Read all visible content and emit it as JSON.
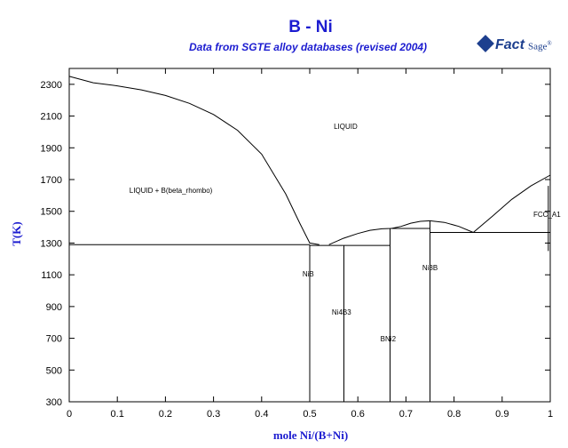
{
  "title": "B - Ni",
  "subtitle": "Data from SGTE alloy databases (revised 2004)",
  "logo": {
    "fact": "Fact",
    "sage": "Sage",
    "trademark": "®"
  },
  "colors": {
    "label_blue": "#1c1cd0",
    "logo_blue": "#1d3f8e"
  },
  "chart_data": {
    "type": "phase-diagram",
    "xlabel": "mole Ni/(B+Ni)",
    "ylabel": "T(K)",
    "xlim": [
      0,
      1
    ],
    "ylim": [
      300,
      2400
    ],
    "xticks": [
      0,
      0.1,
      0.2,
      0.3,
      0.4,
      0.5,
      0.6,
      0.7,
      0.8,
      0.9,
      1
    ],
    "xtick_labels": [
      "0",
      "0.1",
      "0.2",
      "0.3",
      "0.4",
      "0.5",
      "0.6",
      "0.7",
      "0.8",
      "0.9",
      "1"
    ],
    "yticks": [
      300,
      500,
      700,
      900,
      1100,
      1300,
      1500,
      1700,
      1900,
      2100,
      2300
    ],
    "lines": [
      {
        "name": "liquidus-boron-side",
        "points": [
          [
            0,
            2350
          ],
          [
            0.05,
            2310
          ],
          [
            0.1,
            2290
          ],
          [
            0.15,
            2265
          ],
          [
            0.2,
            2230
          ],
          [
            0.25,
            2180
          ],
          [
            0.3,
            2110
          ],
          [
            0.35,
            2010
          ],
          [
            0.4,
            1860
          ],
          [
            0.45,
            1610
          ],
          [
            0.48,
            1420
          ],
          [
            0.5,
            1300
          ],
          [
            0.52,
            1290
          ]
        ]
      },
      {
        "name": "liquidus-ni2b-ni3b-dome",
        "points": [
          [
            0.54,
            1290
          ],
          [
            0.57,
            1330
          ],
          [
            0.6,
            1360
          ],
          [
            0.625,
            1380
          ],
          [
            0.65,
            1390
          ],
          [
            0.67,
            1392
          ],
          [
            0.69,
            1405
          ],
          [
            0.71,
            1425
          ],
          [
            0.73,
            1437
          ],
          [
            0.75,
            1440
          ],
          [
            0.78,
            1430
          ],
          [
            0.81,
            1405
          ],
          [
            0.84,
            1367
          ]
        ]
      },
      {
        "name": "liquidus-ni-side",
        "points": [
          [
            0.84,
            1367
          ],
          [
            0.88,
            1470
          ],
          [
            0.92,
            1575
          ],
          [
            0.96,
            1660
          ],
          [
            1,
            1728
          ]
        ]
      },
      {
        "name": "eutectic-b-nib",
        "points": [
          [
            0,
            1290
          ],
          [
            0.5,
            1290
          ]
        ]
      },
      {
        "name": "peritectic-nib-ni4b3",
        "points": [
          [
            0.5,
            1285
          ],
          [
            0.57,
            1285
          ]
        ]
      },
      {
        "name": "eutectic-ni4b3-ni2b",
        "points": [
          [
            0.57,
            1285
          ],
          [
            0.667,
            1285
          ]
        ]
      },
      {
        "name": "eutectic-ni2b-ni3b",
        "points": [
          [
            0.667,
            1392
          ],
          [
            0.75,
            1392
          ]
        ]
      },
      {
        "name": "eutectic-ni3b-fcc",
        "points": [
          [
            0.75,
            1367
          ],
          [
            1,
            1367
          ]
        ]
      },
      {
        "name": "nib-line",
        "points": [
          [
            0.5,
            300
          ],
          [
            0.5,
            1290
          ]
        ]
      },
      {
        "name": "ni4b3-line",
        "points": [
          [
            0.571,
            300
          ],
          [
            0.571,
            1285
          ]
        ]
      },
      {
        "name": "ni2b-line",
        "points": [
          [
            0.667,
            300
          ],
          [
            0.667,
            1392
          ]
        ]
      },
      {
        "name": "ni3b-line",
        "points": [
          [
            0.75,
            300
          ],
          [
            0.75,
            1440
          ]
        ]
      },
      {
        "name": "fcc-solvus",
        "points": [
          [
            0.996,
            1250
          ],
          [
            0.996,
            1660
          ]
        ]
      }
    ],
    "phase_labels": [
      {
        "text": "LIQUID",
        "x": 0.55,
        "y": 2020,
        "anchor": "start"
      },
      {
        "text": "LIQUID + B(beta_rhombo)",
        "x": 0.125,
        "y": 1615,
        "anchor": "start"
      },
      {
        "text": "FCC_A1",
        "x": 0.965,
        "y": 1465,
        "anchor": "start"
      },
      {
        "text": "NiB",
        "x": 0.485,
        "y": 1090,
        "anchor": "start"
      },
      {
        "text": "Ni4B3",
        "x": 0.546,
        "y": 850,
        "anchor": "start"
      },
      {
        "text": "BNi2",
        "x": 0.647,
        "y": 680,
        "anchor": "start"
      },
      {
        "text": "Ni3B",
        "x": 0.734,
        "y": 1130,
        "anchor": "start"
      }
    ]
  }
}
